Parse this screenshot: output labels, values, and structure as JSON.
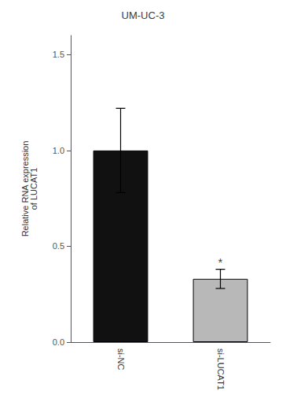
{
  "chart_data": {
    "type": "bar",
    "title": "UM-UC-3",
    "categories": [
      "si-NC",
      "si-LUCAT1"
    ],
    "values": [
      1.0,
      0.33
    ],
    "errors": [
      0.22,
      0.05
    ],
    "colors": [
      "#111111",
      "#b8b8b8"
    ],
    "ylabel": "Relative RNA expression\nof LUCAT1",
    "ylim": [
      0,
      1.6
    ],
    "yticks": [
      {
        "value": 0,
        "label": "0.0"
      },
      0.5,
      {
        "value": 1,
        "label": "1.0"
      },
      1.5
    ],
    "annotations": [
      {
        "text": "*",
        "category": "si-LUCAT1"
      }
    ],
    "grid": false
  }
}
